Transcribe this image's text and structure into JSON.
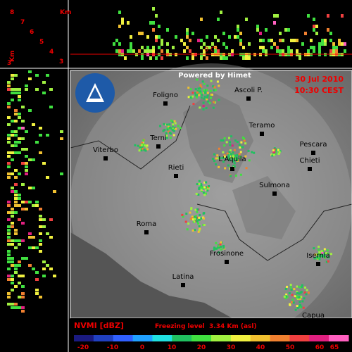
{
  "altitude_unit": "Km",
  "altitude_labels": [
    "8",
    "7",
    "6",
    "5",
    "4",
    "3"
  ],
  "side_axis": {
    "unit": "Km",
    "label": "3"
  },
  "freezing_marker": "0 C°",
  "credit": "Powered by Himet",
  "date": "30 Jul 2010",
  "time": "10:30 CEST",
  "cities": [
    "Foligno",
    "Ascoli P.",
    "Terni",
    "Teramo",
    "Viterbo",
    "Pescara",
    "Rieti",
    "L'Aquila",
    "Chieti",
    "Sulmona",
    "Roma",
    "Frosinone",
    "Isernia",
    "Latina",
    "Capua"
  ],
  "legend": {
    "title": "NVMI [dBZ]",
    "freezing_level": "Freezing level  3.34 Km (asl)",
    "ticks": [
      -20,
      -10,
      0,
      10,
      20,
      30,
      40,
      50,
      60,
      65
    ]
  }
}
